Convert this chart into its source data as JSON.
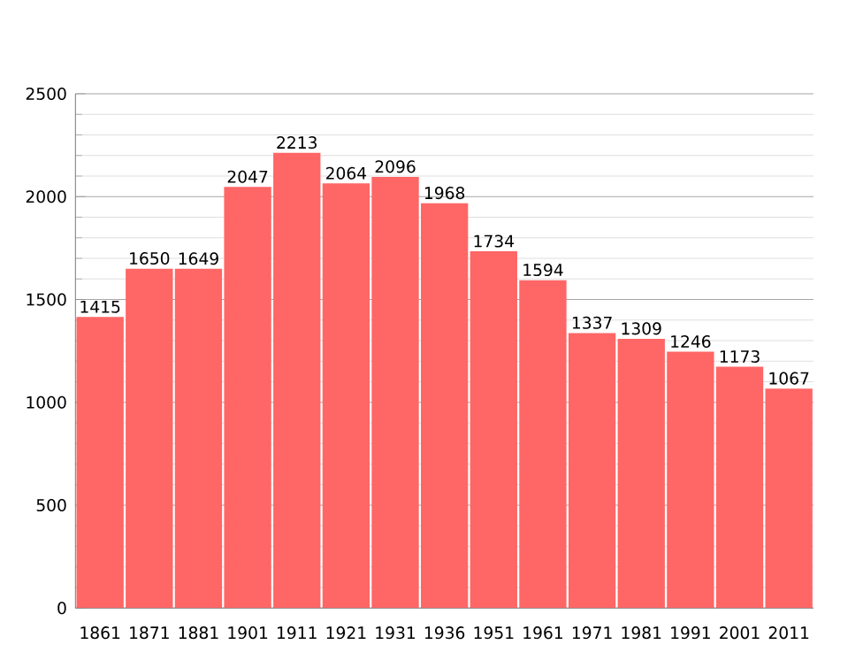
{
  "chart_data": {
    "type": "bar",
    "categories": [
      "1861",
      "1871",
      "1881",
      "1901",
      "1911",
      "1921",
      "1931",
      "1936",
      "1951",
      "1961",
      "1971",
      "1981",
      "1991",
      "2001",
      "2011"
    ],
    "values": [
      1415,
      1650,
      1649,
      2047,
      2213,
      2064,
      2096,
      1968,
      1734,
      1594,
      1337,
      1309,
      1246,
      1173,
      1067
    ],
    "color": "#ff6666",
    "data_labels": true,
    "grid": "y",
    "ylim": [
      0,
      2500
    ],
    "yticks": [
      0,
      500,
      1000,
      1500,
      2000,
      2500
    ]
  }
}
